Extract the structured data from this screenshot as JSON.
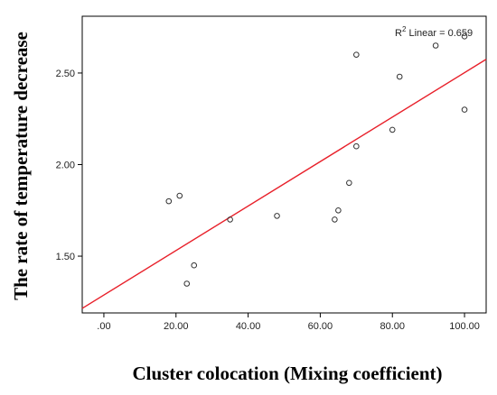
{
  "chart_data": {
    "type": "scatter",
    "xlabel": "Cluster colocation (Mixing coefficient)",
    "ylabel": "The rate of temperature decrease",
    "xlim": [
      -6,
      106
    ],
    "ylim": [
      1.19,
      2.81
    ],
    "xticks": [
      0,
      20,
      40,
      60,
      80,
      100
    ],
    "xtick_labels": [
      ".00",
      "20.00",
      "40.00",
      "60.00",
      "80.00",
      "100.00"
    ],
    "yticks": [
      1.5,
      2.0,
      2.5
    ],
    "ytick_labels": [
      "1.50",
      "2.00",
      "2.50"
    ],
    "grid": false,
    "points": [
      {
        "x": 18,
        "y": 1.8
      },
      {
        "x": 21,
        "y": 1.83
      },
      {
        "x": 23,
        "y": 1.35
      },
      {
        "x": 25,
        "y": 1.45
      },
      {
        "x": 35,
        "y": 1.7
      },
      {
        "x": 48,
        "y": 1.72
      },
      {
        "x": 64,
        "y": 1.7
      },
      {
        "x": 65,
        "y": 1.75
      },
      {
        "x": 68,
        "y": 1.9
      },
      {
        "x": 70,
        "y": 2.1
      },
      {
        "x": 70,
        "y": 2.6
      },
      {
        "x": 80,
        "y": 2.19
      },
      {
        "x": 82,
        "y": 2.48
      },
      {
        "x": 92,
        "y": 2.65
      },
      {
        "x": 100,
        "y": 2.7
      },
      {
        "x": 100,
        "y": 2.3
      }
    ],
    "fit_line": {
      "x": [
        -6,
        106
      ],
      "y": [
        1.215,
        2.575
      ],
      "color": "#e8202a"
    },
    "annotation": {
      "prefix": "R",
      "superscript": "2",
      "suffix": " Linear = 0.659"
    },
    "colors": {
      "points": "#333333",
      "frame": "#000000"
    }
  }
}
